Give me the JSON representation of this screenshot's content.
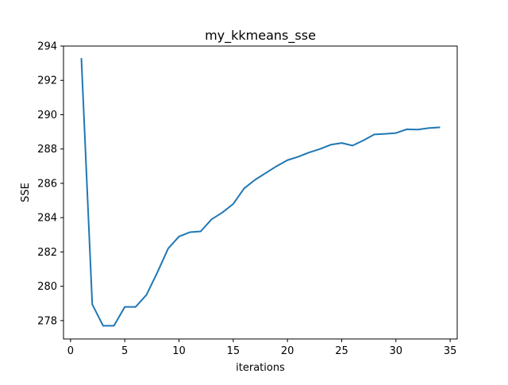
{
  "chart_data": {
    "type": "line",
    "title": "my_kkmeans_sse",
    "xlabel": "iterations",
    "ylabel": "SSE",
    "xlim": [
      -0.65,
      35.65
    ],
    "ylim": [
      276.93,
      294.0
    ],
    "xticks": [
      0,
      5,
      10,
      15,
      20,
      25,
      30,
      35
    ],
    "yticks": [
      278,
      280,
      282,
      284,
      286,
      288,
      290,
      292,
      294
    ],
    "grid": false,
    "legend": "none",
    "series": [
      {
        "color": "#1f77b4",
        "x": [
          1,
          2,
          3,
          4,
          5,
          6,
          7,
          8,
          9,
          10,
          11,
          12,
          13,
          14,
          15,
          16,
          17,
          18,
          19,
          20,
          21,
          22,
          23,
          24,
          25,
          26,
          27,
          28,
          29,
          30,
          31,
          32,
          33,
          34
        ],
        "y": [
          293.25,
          278.95,
          277.7,
          277.7,
          278.8,
          278.8,
          279.5,
          280.8,
          282.2,
          282.9,
          283.15,
          283.2,
          283.9,
          284.3,
          284.8,
          285.7,
          286.2,
          286.6,
          287.0,
          287.35,
          287.55,
          287.8,
          288.0,
          288.25,
          288.35,
          288.2,
          288.5,
          288.85,
          288.88,
          288.93,
          289.15,
          289.13,
          289.22,
          289.26
        ]
      }
    ]
  }
}
